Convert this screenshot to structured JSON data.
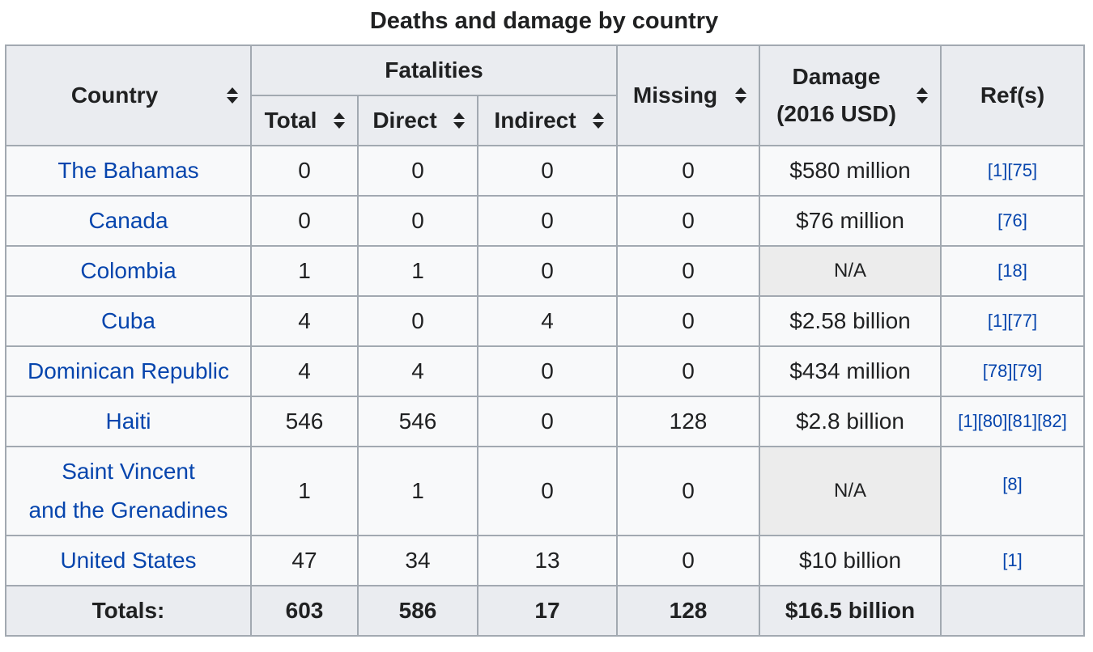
{
  "caption": "Deaths and damage by country",
  "colors": {
    "link": "#0645ad",
    "header_bg": "#eaecf0",
    "cell_bg": "#f8f9fa",
    "border": "#a2a9b1",
    "na_bg": "#ececec"
  },
  "headers": {
    "country": "Country",
    "fatalities": "Fatalities",
    "total": "Total",
    "direct": "Direct",
    "indirect": "Indirect",
    "missing": "Missing",
    "damage_line1": "Damage",
    "damage_line2": "(2016 USD)",
    "refs": "Ref(s)"
  },
  "rows": [
    {
      "country": "The Bahamas",
      "total": "0",
      "direct": "0",
      "indirect": "0",
      "missing": "0",
      "damage": "$580 million",
      "refs": [
        "[1]",
        "[75]"
      ]
    },
    {
      "country": "Canada",
      "total": "0",
      "direct": "0",
      "indirect": "0",
      "missing": "0",
      "damage": "$76 million",
      "refs": [
        "[76]"
      ]
    },
    {
      "country": "Colombia",
      "total": "1",
      "direct": "1",
      "indirect": "0",
      "missing": "0",
      "damage": "N/A",
      "refs": [
        "[18]"
      ]
    },
    {
      "country": "Cuba",
      "total": "4",
      "direct": "0",
      "indirect": "4",
      "missing": "0",
      "damage": "$2.58 billion",
      "refs": [
        "[1]",
        "[77]"
      ]
    },
    {
      "country": "Dominican Republic",
      "total": "4",
      "direct": "4",
      "indirect": "0",
      "missing": "0",
      "damage": "$434 million",
      "refs": [
        "[78]",
        "[79]"
      ]
    },
    {
      "country": "Haiti",
      "total": "546",
      "direct": "546",
      "indirect": "0",
      "missing": "128",
      "damage": "$2.8 billion",
      "refs": [
        "[1]",
        "[80]",
        "[81]",
        "[82]"
      ]
    },
    {
      "country_line1": "Saint Vincent",
      "country_line2": "and the Grenadines",
      "total": "1",
      "direct": "1",
      "indirect": "0",
      "missing": "0",
      "damage": "N/A",
      "refs": [
        "[8]"
      ]
    },
    {
      "country": "United States",
      "total": "47",
      "direct": "34",
      "indirect": "13",
      "missing": "0",
      "damage": "$10 billion",
      "refs": [
        "[1]"
      ]
    }
  ],
  "totals": {
    "label": "Totals:",
    "total": "603",
    "direct": "586",
    "indirect": "17",
    "missing": "128",
    "damage": "$16.5 billion"
  }
}
